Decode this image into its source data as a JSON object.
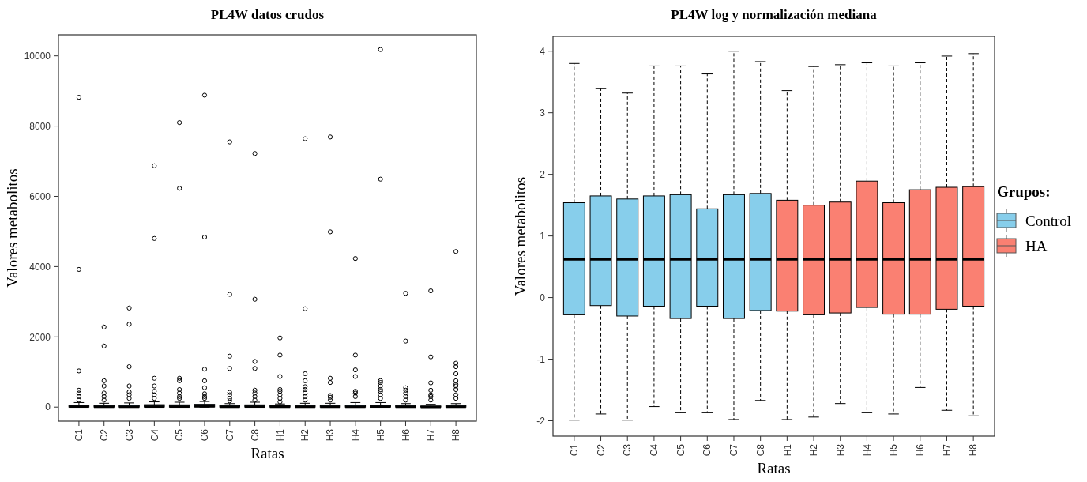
{
  "chart_data": [
    {
      "type": "box",
      "title": "PL4W datos crudos",
      "xlabel": "Ratas",
      "ylabel": "Valores metabolitos",
      "categories": [
        "C1",
        "C2",
        "C3",
        "C4",
        "C5",
        "C6",
        "C7",
        "C8",
        "H1",
        "H2",
        "H3",
        "H4",
        "H5",
        "H6",
        "H7",
        "H8"
      ],
      "ylim": [
        -400,
        10600
      ],
      "yticks": [
        0,
        2000,
        4000,
        6000,
        8000,
        10000
      ],
      "series": [
        {
          "color": "#4f8da6",
          "boxes": [
            {
              "low": 0,
              "q1": 2,
              "median": 15,
              "q3": 55,
              "high": 130,
              "outliers": [
                8820,
                3920,
                1030,
                480,
                400,
                300,
                200
              ]
            },
            {
              "low": 0,
              "q1": 1,
              "median": 10,
              "q3": 45,
              "high": 110,
              "outliers": [
                2280,
                1740,
                750,
                600,
                400,
                300,
                200
              ]
            },
            {
              "low": 0,
              "q1": 1,
              "median": 10,
              "q3": 50,
              "high": 120,
              "outliers": [
                2820,
                2360,
                1150,
                600,
                430,
                350,
                250
              ]
            },
            {
              "low": 0,
              "q1": 2,
              "median": 15,
              "q3": 70,
              "high": 150,
              "outliers": [
                6870,
                4800,
                820,
                600,
                450,
                350,
                250
              ]
            },
            {
              "low": 0,
              "q1": 2,
              "median": 15,
              "q3": 65,
              "high": 140,
              "outliers": [
                8100,
                6230,
                820,
                750,
                500,
                400,
                300,
                250
              ]
            },
            {
              "low": 0,
              "q1": 5,
              "median": 25,
              "q3": 80,
              "high": 160,
              "outliers": [
                8880,
                4840,
                1080,
                750,
                550,
                380,
                300,
                250
              ]
            },
            {
              "low": 0,
              "q1": 1,
              "median": 10,
              "q3": 45,
              "high": 100,
              "outliers": [
                7550,
                3210,
                1450,
                1100,
                420,
                350,
                250,
                180
              ]
            },
            {
              "low": 0,
              "q1": 2,
              "median": 15,
              "q3": 65,
              "high": 140,
              "outliers": [
                7220,
                3070,
                1300,
                1100,
                480,
                400,
                300,
                200
              ]
            },
            {
              "low": 0,
              "q1": 1,
              "median": 10,
              "q3": 40,
              "high": 90,
              "outliers": [
                1970,
                1480,
                870,
                500,
                450,
                350,
                250,
                150
              ]
            },
            {
              "low": 0,
              "q1": 1,
              "median": 10,
              "q3": 45,
              "high": 110,
              "outliers": [
                7640,
                2800,
                950,
                750,
                580,
                500,
                400,
                300,
                200
              ]
            },
            {
              "low": 0,
              "q1": 1,
              "median": 10,
              "q3": 45,
              "high": 110,
              "outliers": [
                7690,
                4990,
                820,
                700,
                330,
                280,
                200
              ]
            },
            {
              "low": 0,
              "q1": 1,
              "median": 10,
              "q3": 50,
              "high": 130,
              "outliers": [
                4230,
                1480,
                1060,
                870,
                450,
                400,
                300
              ]
            },
            {
              "low": 0,
              "q1": 2,
              "median": 15,
              "q3": 55,
              "high": 130,
              "outliers": [
                10180,
                6490,
                750,
                700,
                600,
                500,
                450,
                350,
                250
              ]
            },
            {
              "low": 0,
              "q1": 1,
              "median": 10,
              "q3": 45,
              "high": 100,
              "outliers": [
                3240,
                1880,
                550,
                480,
                400,
                300,
                200
              ]
            },
            {
              "low": 0,
              "q1": 1,
              "median": 5,
              "q3": 30,
              "high": 80,
              "outliers": [
                3310,
                1430,
                690,
                480,
                350,
                300,
                200
              ]
            },
            {
              "low": 0,
              "q1": 1,
              "median": 10,
              "q3": 45,
              "high": 100,
              "outliers": [
                4430,
                1250,
                1150,
                950,
                750,
                650,
                600,
                500,
                350,
                250
              ]
            }
          ]
        }
      ]
    },
    {
      "type": "box",
      "title": "PL4W log y normalización mediana",
      "xlabel": "Ratas",
      "ylabel": "Valores metabolitos",
      "legend_title": "Grupos:",
      "legend": "right",
      "categories": [
        "C1",
        "C2",
        "C3",
        "C4",
        "C5",
        "C6",
        "C7",
        "C8",
        "H1",
        "H2",
        "H3",
        "H4",
        "H5",
        "H6",
        "H7",
        "H8"
      ],
      "ylim": [
        -2.25,
        4.24
      ],
      "yticks": [
        -2,
        -1,
        0,
        1,
        2,
        3,
        4
      ],
      "series": [
        {
          "name": "Control",
          "color": "#87ceeb",
          "boxes": [
            {
              "low": -1.99,
              "q1": -0.28,
              "median": 0.62,
              "q3": 1.54,
              "high": 3.8
            },
            {
              "low": -1.89,
              "q1": -0.13,
              "median": 0.62,
              "q3": 1.65,
              "high": 3.39
            },
            {
              "low": -1.99,
              "q1": -0.3,
              "median": 0.62,
              "q3": 1.6,
              "high": 3.32
            },
            {
              "low": -1.77,
              "q1": -0.14,
              "median": 0.62,
              "q3": 1.65,
              "high": 3.76
            },
            {
              "low": -1.87,
              "q1": -0.34,
              "median": 0.62,
              "q3": 1.67,
              "high": 3.76
            },
            {
              "low": -1.87,
              "q1": -0.14,
              "median": 0.62,
              "q3": 1.44,
              "high": 3.63
            },
            {
              "low": -1.98,
              "q1": -0.34,
              "median": 0.62,
              "q3": 1.67,
              "high": 4.0
            },
            {
              "low": -1.67,
              "q1": -0.21,
              "median": 0.62,
              "q3": 1.69,
              "high": 3.83
            },
            null,
            null,
            null,
            null,
            null,
            null,
            null,
            null
          ]
        },
        {
          "name": "HA",
          "color": "#fa8072",
          "boxes": [
            null,
            null,
            null,
            null,
            null,
            null,
            null,
            null,
            {
              "low": -1.98,
              "q1": -0.22,
              "median": 0.62,
              "q3": 1.58,
              "high": 3.36
            },
            {
              "low": -1.94,
              "q1": -0.28,
              "median": 0.62,
              "q3": 1.5,
              "high": 3.75
            },
            {
              "low": -1.72,
              "q1": -0.25,
              "median": 0.62,
              "q3": 1.55,
              "high": 3.78
            },
            {
              "low": -1.87,
              "q1": -0.16,
              "median": 0.62,
              "q3": 1.89,
              "high": 3.81
            },
            {
              "low": -1.89,
              "q1": -0.27,
              "median": 0.62,
              "q3": 1.54,
              "high": 3.76
            },
            {
              "low": -1.46,
              "q1": -0.27,
              "median": 0.62,
              "q3": 1.75,
              "high": 3.81
            },
            {
              "low": -1.83,
              "q1": -0.19,
              "median": 0.62,
              "q3": 1.79,
              "high": 3.92
            },
            {
              "low": -1.92,
              "q1": -0.14,
              "median": 0.62,
              "q3": 1.8,
              "high": 3.96
            }
          ]
        }
      ]
    }
  ]
}
